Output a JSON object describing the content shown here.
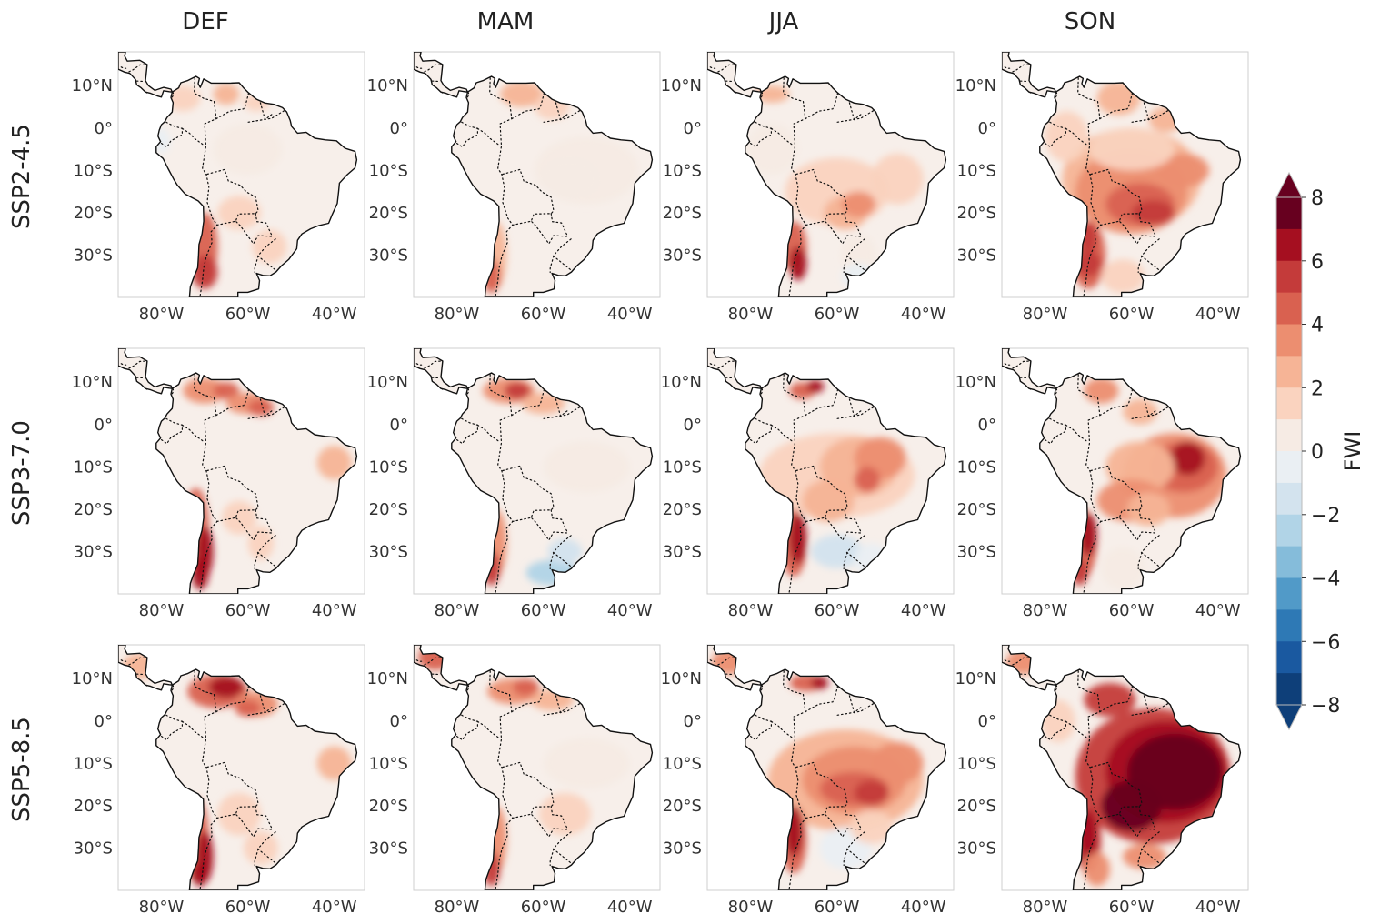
{
  "seasons": [
    "DEF",
    "MAM",
    "JJA",
    "SON"
  ],
  "scenarios": [
    "SSP2-4.5",
    "SSP3-7.0",
    "SSP5-8.5"
  ],
  "lat_ticks": [
    "10°N",
    "0°",
    "10°S",
    "20°S",
    "30°S"
  ],
  "lon_ticks": [
    "80°W",
    "60°W",
    "40°W"
  ],
  "colorbar": {
    "label": "FWI",
    "ticks": [
      "8",
      "6",
      "4",
      "2",
      "0",
      "−2",
      "−4",
      "−6",
      "−8"
    ],
    "levels_top_to_bottom": [
      "#67001f",
      "#a50f20",
      "#c43b3a",
      "#d96150",
      "#ec8e70",
      "#f6b496",
      "#fad3bf",
      "#f6ebe4",
      "#eaeff3",
      "#d3e3ee",
      "#b1d4e7",
      "#85bcda",
      "#519ac8",
      "#2e79b5",
      "#1a59a0",
      "#0e3f79"
    ],
    "extend": "both"
  },
  "map_style": {
    "coastline": "solid black",
    "borders": "dotted black",
    "background": "#f6ebe4",
    "base_fill": "#f7efea"
  }
}
